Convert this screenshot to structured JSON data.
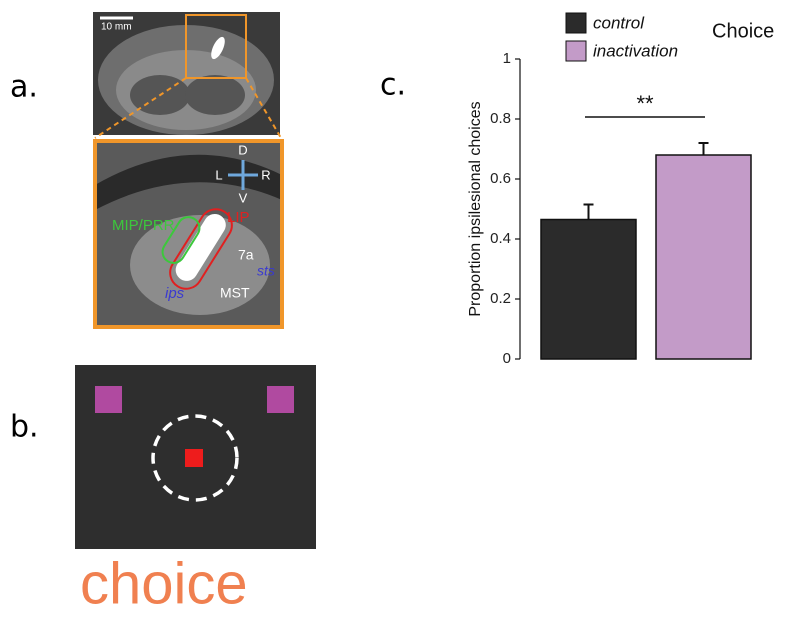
{
  "panel_labels": [
    "a.",
    "b.",
    "c."
  ],
  "panel_a": {
    "scale_bar": "10 mm",
    "directions": [
      "D",
      "L",
      "R",
      "V"
    ],
    "regions": [
      "MIP/PRR",
      "LIP",
      "7a",
      "sts",
      "ips",
      "MST"
    ]
  },
  "panel_b": {
    "caption": "choice"
  },
  "chart_data": {
    "type": "bar",
    "title": "Choice",
    "ylabel": "Proportion ipsilesional choices",
    "series": [
      {
        "name": "control",
        "color": "#2b2b2b",
        "values": [
          0.465
        ],
        "errors": [
          0.05
        ]
      },
      {
        "name": "inactivation",
        "color": "#c39bc8",
        "values": [
          0.68
        ],
        "errors": [
          0.04
        ]
      }
    ],
    "ylim": [
      0,
      1
    ],
    "yticks": [
      0,
      0.2,
      0.4,
      0.6,
      0.8,
      1
    ],
    "annotation": "**"
  }
}
